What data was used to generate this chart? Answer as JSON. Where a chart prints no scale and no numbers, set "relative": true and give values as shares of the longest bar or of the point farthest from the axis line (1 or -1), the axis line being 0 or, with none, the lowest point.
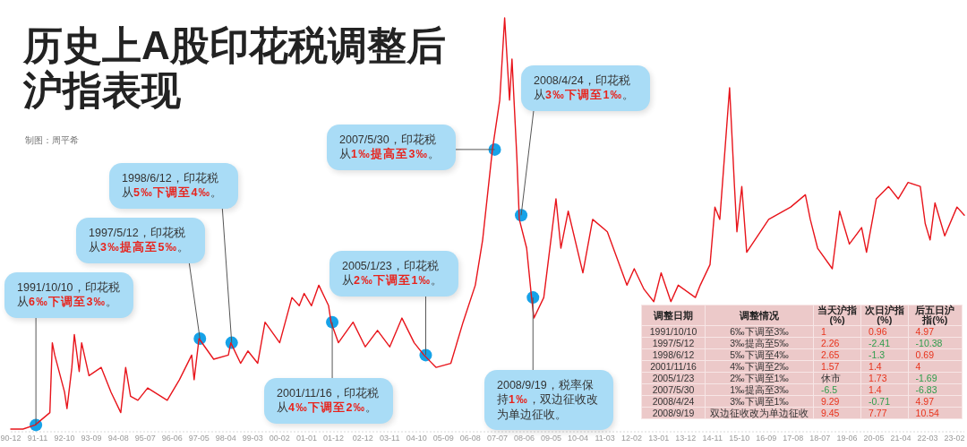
{
  "chart_data": [
    {
      "type": "line",
      "title": "历史上A股印花税调整后沪指表现",
      "relative": true,
      "color": "#e8141b",
      "x": [
        "1990-12",
        "1991-05",
        "1991-10",
        "1992-04",
        "1992-05",
        "1992-06",
        "1992-10",
        "1992-11",
        "1993-01",
        "1993-02",
        "1993-04",
        "1993-05",
        "1993-08",
        "1994-01",
        "1994-05",
        "1994-09",
        "1994-11",
        "1995-01",
        "1995-04",
        "1995-08",
        "1996-04",
        "1996-09",
        "1997-02",
        "1997-03",
        "1997-05",
        "1997-11",
        "1998-05",
        "1998-06",
        "1998-10",
        "1999-01",
        "1999-05",
        "1999-08",
        "2000-02",
        "2000-07",
        "2000-10",
        "2000-12",
        "2001-03",
        "2001-06",
        "2001-10",
        "2001-11",
        "2002-02",
        "2002-08",
        "2003-01",
        "2003-06",
        "2003-11",
        "2004-04",
        "2004-09",
        "2005-01",
        "2005-06",
        "2005-12",
        "2006-05",
        "2006-10",
        "2007-01",
        "2007-05",
        "2007-08",
        "2007-10",
        "2007-12",
        "2008-01",
        "2008-03",
        "2008-04",
        "2008-07",
        "2008-09",
        "2008-10",
        "2009-02",
        "2009-07",
        "2009-09",
        "2009-12",
        "2010-06",
        "2010-10",
        "2011-04",
        "2011-12",
        "2012-03",
        "2012-07",
        "2012-11",
        "2013-02",
        "2013-06",
        "2013-09",
        "2014-04",
        "2014-06",
        "2014-10",
        "2014-12",
        "2015-02",
        "2015-06",
        "2015-08",
        "2015-09",
        "2015-11",
        "2016-01",
        "2016-10",
        "2017-07",
        "2018-01",
        "2018-03",
        "2018-06",
        "2018-12",
        "2019-03",
        "2019-07",
        "2019-12",
        "2020-02",
        "2020-06",
        "2020-11",
        "2021-03",
        "2021-07",
        "2021-12",
        "2022-02",
        "2022-04",
        "2022-06",
        "2022-10",
        "2023-03",
        "2023-06"
      ],
      "values": [
        0,
        0,
        0.01,
        0.04,
        0.21,
        0.18,
        0.09,
        0.05,
        0.15,
        0.23,
        0.14,
        0.21,
        0.13,
        0.15,
        0.09,
        0.04,
        0.15,
        0.08,
        0.07,
        0.1,
        0.07,
        0.12,
        0.18,
        0.12,
        0.22,
        0.17,
        0.18,
        0.21,
        0.16,
        0.19,
        0.16,
        0.26,
        0.21,
        0.32,
        0.3,
        0.33,
        0.3,
        0.35,
        0.3,
        0.26,
        0.21,
        0.26,
        0.2,
        0.24,
        0.2,
        0.27,
        0.21,
        0.18,
        0.15,
        0.16,
        0.26,
        0.35,
        0.46,
        0.68,
        0.8,
        1,
        0.8,
        0.9,
        0.66,
        0.51,
        0.44,
        0.32,
        0.27,
        0.32,
        0.56,
        0.44,
        0.53,
        0.38,
        0.51,
        0.48,
        0.35,
        0.39,
        0.34,
        0.31,
        0.38,
        0.31,
        0.35,
        0.32,
        0.35,
        0.4,
        0.54,
        0.51,
        0.83,
        0.59,
        0.48,
        0.59,
        0.43,
        0.51,
        0.54,
        0.57,
        0.51,
        0.44,
        0.39,
        0.53,
        0.45,
        0.49,
        0.43,
        0.56,
        0.59,
        0.56,
        0.6,
        0.59,
        0.5,
        0.46,
        0.55,
        0.47,
        0.54,
        0.52
      ],
      "xlim": [
        "1990-12",
        "2023-06"
      ],
      "xticks": [
        {
          "value": "1990-12",
          "label": "90-12"
        },
        {
          "value": "1991-11",
          "label": "91-11"
        },
        {
          "value": "1992-10",
          "label": "92-10"
        },
        {
          "value": "1993-09",
          "label": "93-09"
        },
        {
          "value": "1994-08",
          "label": "94-08"
        },
        {
          "value": "1995-07",
          "label": "95-07"
        },
        {
          "value": "1996-06",
          "label": "96-06"
        },
        {
          "value": "1997-05",
          "label": "97-05"
        },
        {
          "value": "1998-04",
          "label": "98-04"
        },
        {
          "value": "1999-03",
          "label": "99-03"
        },
        {
          "value": "2000-02",
          "label": "00-02"
        },
        {
          "value": "2001-01",
          "label": "01-01"
        },
        {
          "value": "2001-12",
          "label": "01-12"
        },
        {
          "value": "2002-12",
          "label": "02-12"
        },
        {
          "value": "2003-11",
          "label": "03-11"
        },
        {
          "value": "2004-10",
          "label": "04-10"
        },
        {
          "value": "2005-09",
          "label": "05-09"
        },
        {
          "value": "2006-08",
          "label": "06-08"
        },
        {
          "value": "2007-07",
          "label": "07-07"
        },
        {
          "value": "2008-06",
          "label": "08-06"
        },
        {
          "value": "2009-05",
          "label": "09-05"
        },
        {
          "value": "2010-04",
          "label": "10-04"
        },
        {
          "value": "2011-03",
          "label": "11-03"
        },
        {
          "value": "2012-02",
          "label": "12-02"
        },
        {
          "value": "2013-01",
          "label": "13-01"
        },
        {
          "value": "2013-12",
          "label": "13-12"
        },
        {
          "value": "2014-11",
          "label": "14-11"
        },
        {
          "value": "2015-10",
          "label": "15-10"
        },
        {
          "value": "2016-09",
          "label": "16-09"
        },
        {
          "value": "2017-08",
          "label": "17-08"
        },
        {
          "value": "2018-07",
          "label": "18-07"
        },
        {
          "value": "2019-06",
          "label": "19-06"
        },
        {
          "value": "2020-05",
          "label": "20-05"
        },
        {
          "value": "2021-04",
          "label": "21-04"
        },
        {
          "value": "2022-03",
          "label": "22-03"
        },
        {
          "value": "2023-02",
          "label": "23-02"
        }
      ],
      "annotations": [
        "制图：周平希",
        {
          "text": "1991/10/10，印花税从**6‰下调至3‰**。",
          "x": "1991-10-10",
          "y": 0.01
        },
        {
          "text": "1997/5/12，印花税从**3‰提高至5‰**。",
          "x": "1997-05-12",
          "y": 0.22
        },
        {
          "text": "1998/6/12，印花税从**5‰下调至4‰**。",
          "x": "1998-06-12",
          "y": 0.21
        },
        {
          "text": "2001/11/16，印花税从**4‰下调至2‰**。",
          "x": "2001-11-16",
          "y": 0.26
        },
        {
          "text": "2005/1/23，印花税从**2‰下调至1‰**。",
          "x": "2005-01-23",
          "y": 0.18
        },
        {
          "text": "2007/5/30，印花税从**1‰提高至3‰**。",
          "x": "2007-05-30",
          "y": 0.68
        },
        {
          "text": "2008/4/24，印花税从**3‰下调至1‰**。",
          "x": "2008-04-24",
          "y": 0.52
        },
        {
          "text": "2008/9/19，税率保持**1‰**，双边征收改为单边征收。",
          "x": "2008-09-19",
          "y": 0.32
        }
      ]
    },
    {
      "type": "other",
      "categories": [
        "调整日期",
        "调整情况",
        "当天沪指(%)",
        "次日沪指(%)",
        "后五日沪指(%)"
      ],
      "y_categories": [
        "1991/10/10",
        "1997/5/12",
        "1998/6/12",
        "2001/11/16",
        "2005/1/23",
        "2007/5/30",
        "2008/4/24",
        "2008/9/19"
      ],
      "cell_labels": [
        [
          "6‰下调至3‰",
          "1",
          "0.96",
          "4.97"
        ],
        [
          "3‰提高至5‰",
          "2.26",
          "-2.41",
          "-10.38"
        ],
        [
          "5‰下调至4‰",
          "2.65",
          "-1.3",
          "0.69"
        ],
        [
          "4‰下调至2‰",
          "1.57",
          "1.4",
          "4"
        ],
        [
          "2‰下调至1‰",
          "休市",
          "1.73",
          "-1.69"
        ],
        [
          "1‰提高至3‰",
          "-6.5",
          "1.4",
          "-6.83"
        ],
        [
          "3‰下调至1‰",
          "9.29",
          "-0.71",
          "4.97"
        ],
        [
          "双边征收改为单边征收",
          "9.45",
          "7.77",
          "10.54"
        ]
      ]
    }
  ]
}
